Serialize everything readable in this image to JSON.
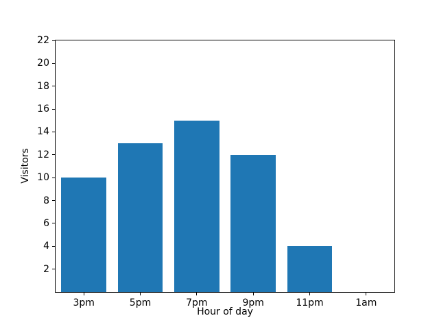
{
  "colors": {
    "background": "#ffffff",
    "spine": "#000000",
    "bar": "#1f77b4"
  },
  "chart_data": {
    "type": "bar",
    "title": "",
    "categories": [
      "3pm",
      "5pm",
      "7pm",
      "9pm",
      "11pm",
      "1am"
    ],
    "values": [
      10,
      13,
      15,
      12,
      4,
      0
    ],
    "xlabel": "Hour of day",
    "ylabel": "Visitors",
    "ylim": [
      0,
      22
    ],
    "yticks": [
      2,
      4,
      6,
      8,
      10,
      12,
      14,
      16,
      18,
      20,
      22
    ],
    "bar_color": "#1f77b4",
    "bar_width_fraction": 0.8,
    "grid": false,
    "legend": null
  }
}
